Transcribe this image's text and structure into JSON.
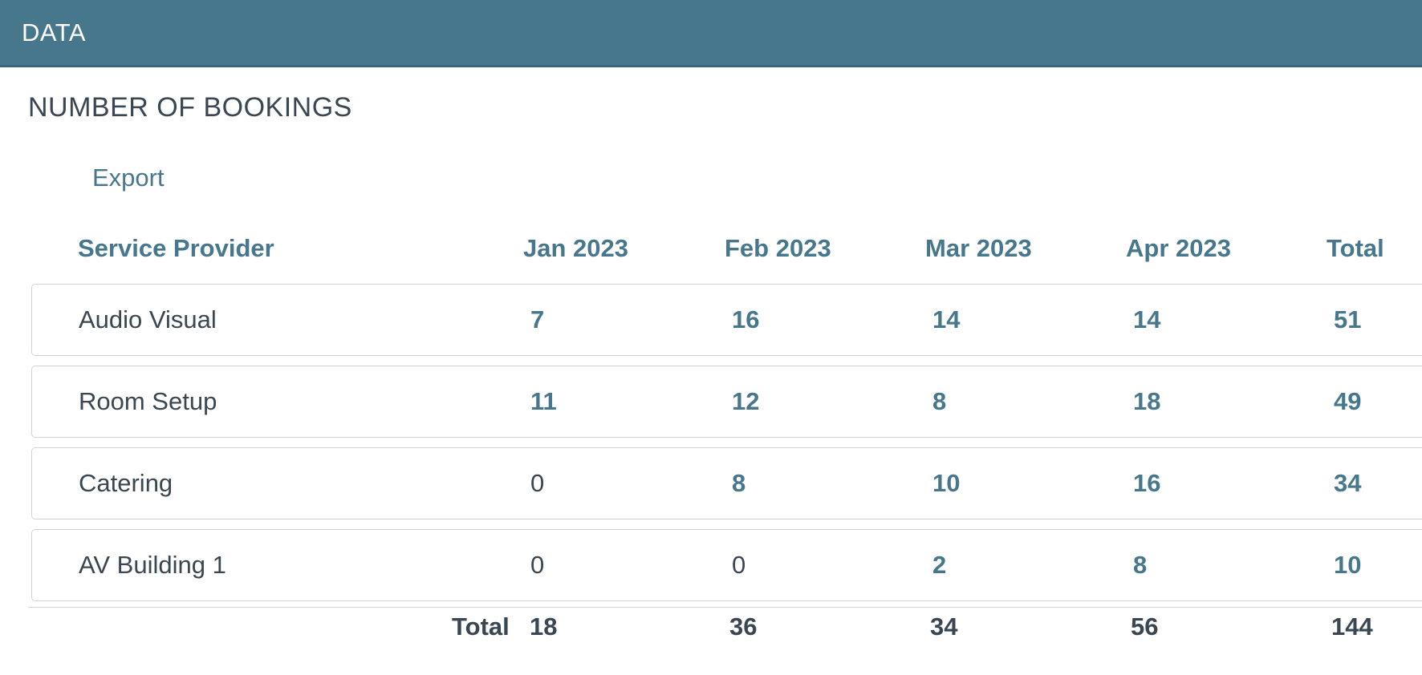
{
  "header": {
    "title": "DATA"
  },
  "section": {
    "title": "NUMBER OF BOOKINGS"
  },
  "actions": {
    "export_label": "Export"
  },
  "table": {
    "columns": [
      "Service Provider",
      "Jan 2023",
      "Feb 2023",
      "Mar 2023",
      "Apr 2023",
      "Total"
    ],
    "rows": [
      {
        "provider": "Audio Visual",
        "values": [
          "7",
          "16",
          "14",
          "14",
          "51"
        ]
      },
      {
        "provider": "Room Setup",
        "values": [
          "11",
          "12",
          "8",
          "18",
          "49"
        ]
      },
      {
        "provider": "Catering",
        "values": [
          "0",
          "8",
          "10",
          "16",
          "34"
        ]
      },
      {
        "provider": "AV Building 1",
        "values": [
          "0",
          "0",
          "2",
          "8",
          "10"
        ]
      }
    ],
    "totals": {
      "label": "Total",
      "values": [
        "18",
        "36",
        "34",
        "56",
        "144"
      ]
    }
  },
  "colors": {
    "header_bar": "#47778c",
    "link": "#47778c",
    "text": "#3a4651",
    "row_border": "#cfd3d6"
  }
}
